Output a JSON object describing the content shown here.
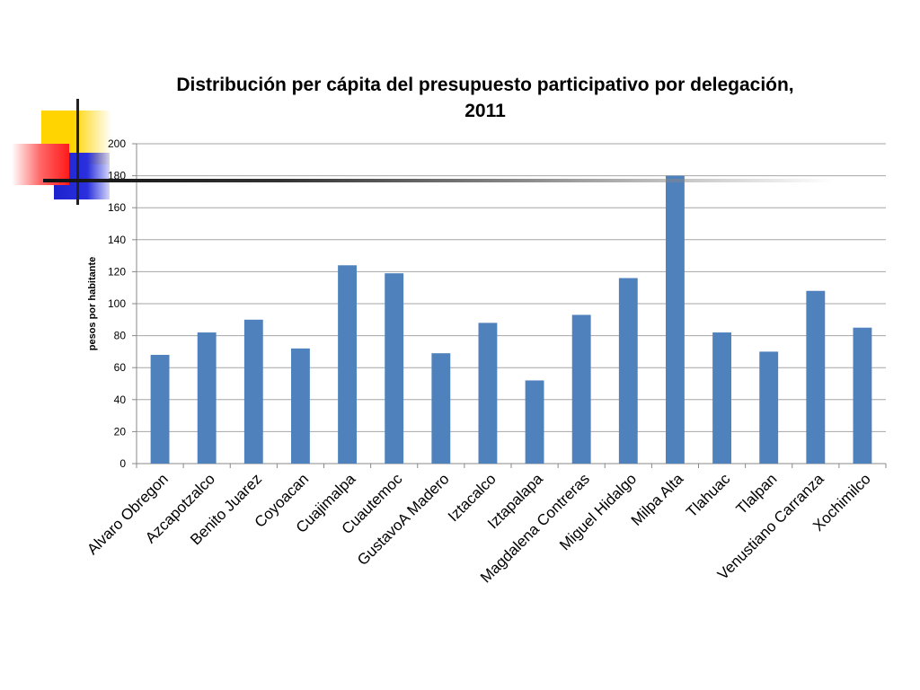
{
  "chart_data": {
    "type": "bar",
    "title_line1": "Distribución per cápita del  presupuesto participativo por delegación,",
    "title_line2": "2011",
    "xlabel": "",
    "ylabel": "pesos por habitante",
    "ylim": [
      0,
      200
    ],
    "yticks": [
      "0",
      "20",
      "40",
      "60",
      "80",
      "100",
      "120",
      "140",
      "160",
      "180",
      "200"
    ],
    "grid": true,
    "legend": "none",
    "bar_color": "#4f81bd",
    "categories": [
      "Alvaro Obregon",
      "Azcapotzalco",
      "Benito Juarez",
      "Coyoacan",
      "Cuajimalpa",
      "Cuautemoc",
      "GustavoA Madero",
      "Iztacalco",
      "Iztapalapa",
      "Magdalena Contreras",
      "Miguel Hidalgo",
      "Milpa Alta",
      "Tlahuac",
      "Tlalpan",
      "Venustiano Carranza",
      "Xochimilco"
    ],
    "values": [
      68,
      82,
      90,
      72,
      124,
      119,
      69,
      88,
      52,
      93,
      116,
      180,
      82,
      70,
      108,
      85
    ]
  },
  "decoration": {
    "colors": {
      "yellow": "#ffd400",
      "blue": "#1c22cc",
      "red": "#ff1a1a",
      "line": "#222222"
    }
  }
}
